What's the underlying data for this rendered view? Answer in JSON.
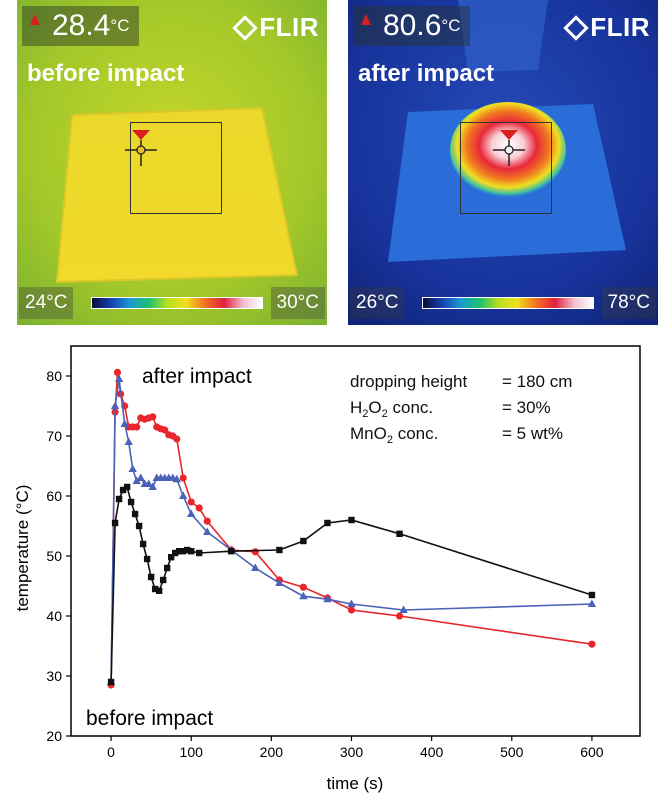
{
  "thermal_before": {
    "readout_value": "28.4",
    "readout_unit": "°C",
    "brand": "FLIR",
    "caption": "before impact",
    "scale_min": "24°C",
    "scale_max": "30°C",
    "marker_icon": "triangle-icon"
  },
  "thermal_after": {
    "readout_value": "80.6",
    "readout_unit": "°C",
    "brand": "FLIR",
    "caption": "after impact",
    "scale_min": "26°C",
    "scale_max": "78°C",
    "marker_icon": "triangle-icon"
  },
  "colors": {
    "red_series": "#e8262c",
    "blue_series": "#4a63b8",
    "black_series": "#111111"
  },
  "chart_data": {
    "type": "line",
    "xlabel": "time (s)",
    "ylabel": "temperature (°C)",
    "xlim": [
      -50,
      660
    ],
    "ylim": [
      20,
      85
    ],
    "xticks": [
      0,
      100,
      200,
      300,
      400,
      500,
      600
    ],
    "yticks": [
      20,
      30,
      40,
      50,
      60,
      70,
      80
    ],
    "grid": false,
    "annotations": {
      "after": "after impact",
      "before": "before impact"
    },
    "params": {
      "l1_label": "dropping height",
      "l1_value": "= 180 cm",
      "l2_label_a": "H",
      "l2_sub1": "2",
      "l2_label_b": "O",
      "l2_sub2": "2",
      "l2_label_c": " conc.",
      "l2_value": "= 30%",
      "l3_label_a": "MnO",
      "l3_sub": "2",
      "l3_label_b": " conc.",
      "l3_value": "= 5 wt%"
    },
    "series": [
      {
        "marker": "circle",
        "color": "#e8262c",
        "x": [
          0,
          5,
          8,
          12,
          17,
          22,
          27,
          32,
          37,
          42,
          47,
          52,
          57,
          62,
          67,
          72,
          77,
          82,
          90,
          100,
          110,
          120,
          150,
          180,
          210,
          240,
          270,
          300,
          360,
          600
        ],
        "y": [
          28.5,
          74,
          80.6,
          77,
          75,
          71.5,
          71.5,
          71.5,
          73,
          72.8,
          73,
          73.2,
          71.5,
          71.2,
          71,
          70.2,
          70,
          69.5,
          63,
          59,
          58,
          55.8,
          51,
          50.7,
          46,
          44.8,
          43,
          41,
          40,
          35.3
        ]
      },
      {
        "marker": "triangle",
        "color": "#4a63b8",
        "x": [
          0,
          5,
          10,
          17,
          22,
          27,
          32,
          37,
          42,
          47,
          52,
          57,
          62,
          67,
          72,
          77,
          82,
          90,
          100,
          120,
          150,
          180,
          210,
          240,
          270,
          300,
          365,
          600
        ],
        "y": [
          29,
          75,
          79.5,
          72,
          69,
          64.5,
          62.5,
          63,
          62,
          62,
          61.5,
          63,
          63,
          63,
          63,
          63,
          62.8,
          60,
          57,
          54,
          51,
          48,
          45.5,
          43.3,
          42.8,
          42,
          41,
          42
        ]
      },
      {
        "marker": "square",
        "color": "#111111",
        "x": [
          0,
          5,
          10,
          15,
          20,
          25,
          30,
          35,
          40,
          45,
          50,
          55,
          60,
          65,
          70,
          75,
          80,
          85,
          90,
          95,
          100,
          110,
          150,
          210,
          240,
          270,
          300,
          360,
          600
        ],
        "y": [
          29,
          55.5,
          59.5,
          61,
          61.5,
          59,
          57,
          55,
          52,
          49.5,
          46.5,
          44.5,
          44.2,
          46,
          48,
          49.8,
          50.5,
          50.8,
          50.8,
          51,
          50.8,
          50.5,
          50.8,
          51,
          52.5,
          55.5,
          56,
          53.7,
          43.5
        ]
      }
    ]
  }
}
